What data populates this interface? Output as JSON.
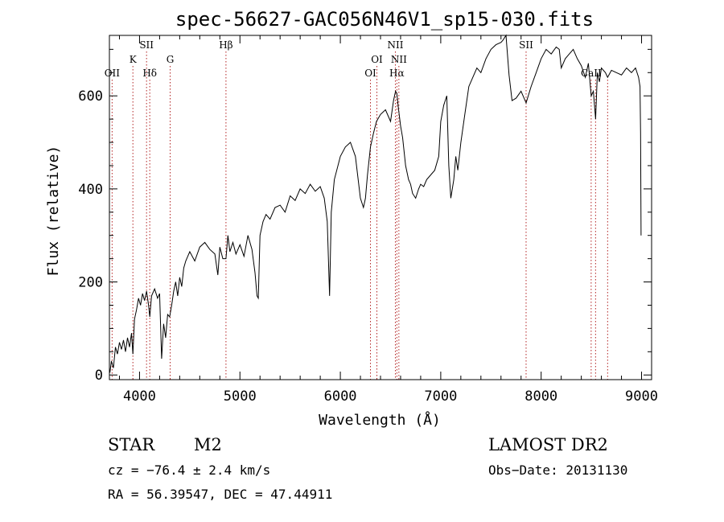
{
  "chart_data": {
    "type": "line",
    "title": "spec-56627-GAC056N46V1_sp15-030.fits",
    "xlabel": "Wavelength (Å)",
    "ylabel": "Flux (relative)",
    "xlim": [
      3700,
      9100
    ],
    "ylim": [
      -10,
      730
    ],
    "xticks": [
      4000,
      5000,
      6000,
      7000,
      8000,
      9000
    ],
    "xtick_labels": [
      "4000",
      "5000",
      "6000",
      "7000",
      "8000",
      "9000"
    ],
    "yticks": [
      0,
      200,
      400,
      600
    ],
    "ytick_labels": [
      "0",
      "200",
      "400",
      "600"
    ],
    "grid": false,
    "legend": "none",
    "spectrum": {
      "color": "#000000",
      "x": [
        3705,
        3720,
        3740,
        3760,
        3780,
        3800,
        3820,
        3840,
        3860,
        3880,
        3900,
        3920,
        3934,
        3950,
        3970,
        3990,
        4010,
        4030,
        4050,
        4070,
        4090,
        4102,
        4120,
        4150,
        4180,
        4200,
        4220,
        4240,
        4260,
        4280,
        4300,
        4320,
        4340,
        4360,
        4380,
        4400,
        4420,
        4440,
        4460,
        4480,
        4500,
        4550,
        4600,
        4650,
        4700,
        4750,
        4780,
        4800,
        4830,
        4861,
        4880,
        4900,
        4930,
        4960,
        5000,
        5040,
        5080,
        5120,
        5150,
        5170,
        5183,
        5200,
        5230,
        5260,
        5300,
        5350,
        5400,
        5450,
        5500,
        5550,
        5600,
        5650,
        5700,
        5750,
        5800,
        5840,
        5870,
        5893,
        5910,
        5940,
        6000,
        6050,
        6100,
        6150,
        6200,
        6230,
        6250,
        6270,
        6300,
        6330,
        6360,
        6400,
        6450,
        6500,
        6530,
        6550,
        6563,
        6580,
        6600,
        6620,
        6650,
        6680,
        6700,
        6720,
        6750,
        6780,
        6800,
        6830,
        6860,
        6900,
        6940,
        6980,
        7000,
        7030,
        7060,
        7080,
        7100,
        7130,
        7150,
        7170,
        7200,
        7240,
        7280,
        7320,
        7360,
        7400,
        7450,
        7500,
        7550,
        7600,
        7620,
        7650,
        7680,
        7710,
        7750,
        7800,
        7850,
        7900,
        7950,
        8000,
        8050,
        8100,
        8150,
        8180,
        8200,
        8240,
        8280,
        8320,
        8360,
        8400,
        8440,
        8470,
        8498,
        8520,
        8542,
        8560,
        8580,
        8600,
        8640,
        8662,
        8700,
        8750,
        8800,
        8850,
        8900,
        8940,
        8970,
        8985,
        8990,
        8995
      ],
      "y": [
        5,
        30,
        15,
        60,
        45,
        70,
        55,
        75,
        50,
        80,
        60,
        90,
        45,
        120,
        140,
        165,
        150,
        175,
        160,
        180,
        150,
        125,
        170,
        185,
        165,
        175,
        35,
        110,
        80,
        130,
        125,
        150,
        180,
        200,
        170,
        210,
        190,
        230,
        245,
        255,
        265,
        245,
        275,
        285,
        270,
        260,
        215,
        275,
        250,
        250,
        300,
        265,
        285,
        260,
        280,
        255,
        300,
        270,
        220,
        170,
        165,
        300,
        330,
        345,
        335,
        360,
        365,
        350,
        385,
        375,
        400,
        390,
        410,
        395,
        405,
        380,
        330,
        170,
        350,
        420,
        470,
        490,
        500,
        470,
        380,
        360,
        380,
        430,
        490,
        520,
        545,
        560,
        570,
        545,
        590,
        610,
        605,
        570,
        535,
        510,
        450,
        420,
        410,
        390,
        380,
        400,
        410,
        405,
        420,
        430,
        440,
        470,
        545,
        580,
        600,
        450,
        380,
        420,
        470,
        440,
        500,
        560,
        620,
        640,
        660,
        650,
        680,
        700,
        710,
        715,
        720,
        730,
        645,
        590,
        595,
        610,
        585,
        620,
        650,
        680,
        700,
        690,
        705,
        700,
        660,
        680,
        690,
        700,
        680,
        665,
        640,
        670,
        600,
        610,
        550,
        650,
        630,
        660,
        650,
        640,
        655,
        650,
        645,
        660,
        650,
        660,
        640,
        620,
        520,
        300
      ]
    },
    "lines": [
      {
        "label": "OII",
        "x": 3727,
        "row": 3
      },
      {
        "label": "K",
        "x": 3934,
        "row": 1
      },
      {
        "label": "SII",
        "x": 4070,
        "row": 0
      },
      {
        "label": "Hδ",
        "x": 4102,
        "row": 2
      },
      {
        "label": "G",
        "x": 4305,
        "row": 1
      },
      {
        "label": "Hβ",
        "x": 4861,
        "row": 0
      },
      {
        "label": "OI",
        "x": 6300,
        "row": 3
      },
      {
        "label": "OI",
        "x": 6364,
        "row": 1
      },
      {
        "label": "NII",
        "x": 6548,
        "row": 0
      },
      {
        "label": "Hα",
        "x": 6563,
        "row": 3
      },
      {
        "label": "NII",
        "x": 6583,
        "row": 1
      },
      {
        "label": "SII",
        "x": 7850,
        "row": 0
      },
      {
        "label": "CaII",
        "x": 8498,
        "row": 2
      },
      {
        "label": "",
        "x": 8542,
        "row": 2
      },
      {
        "label": "",
        "x": 8662,
        "row": 2
      }
    ],
    "line_color": "#b22222"
  },
  "info": {
    "object_class": "STAR",
    "subclass": "M2",
    "cz": "cz = −76.4 ± 2.4 km/s",
    "coords": "RA =  56.39547, DEC =  47.44911",
    "survey": "LAMOST DR2",
    "obs_date": "Obs−Date: 20131130"
  }
}
